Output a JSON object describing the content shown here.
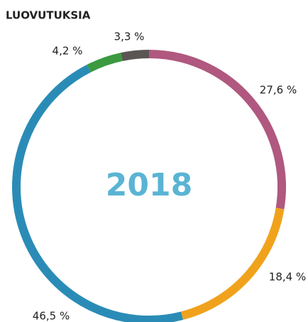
{
  "chart_data": {
    "type": "donut",
    "title": "LUOVUTUKSIA",
    "center_label": "2018",
    "categories": [
      null,
      null,
      null,
      null,
      null
    ],
    "values": [
      27.6,
      18.4,
      46.5,
      4.2,
      3.3
    ],
    "value_labels": [
      "27,6 %",
      "18,4 %",
      "46,5 %",
      "4,2 %",
      "3,3 %"
    ],
    "colors": [
      "#b0587f",
      "#f0a21c",
      "#2a8cb6",
      "#3b9a40",
      "#5b5652"
    ]
  }
}
